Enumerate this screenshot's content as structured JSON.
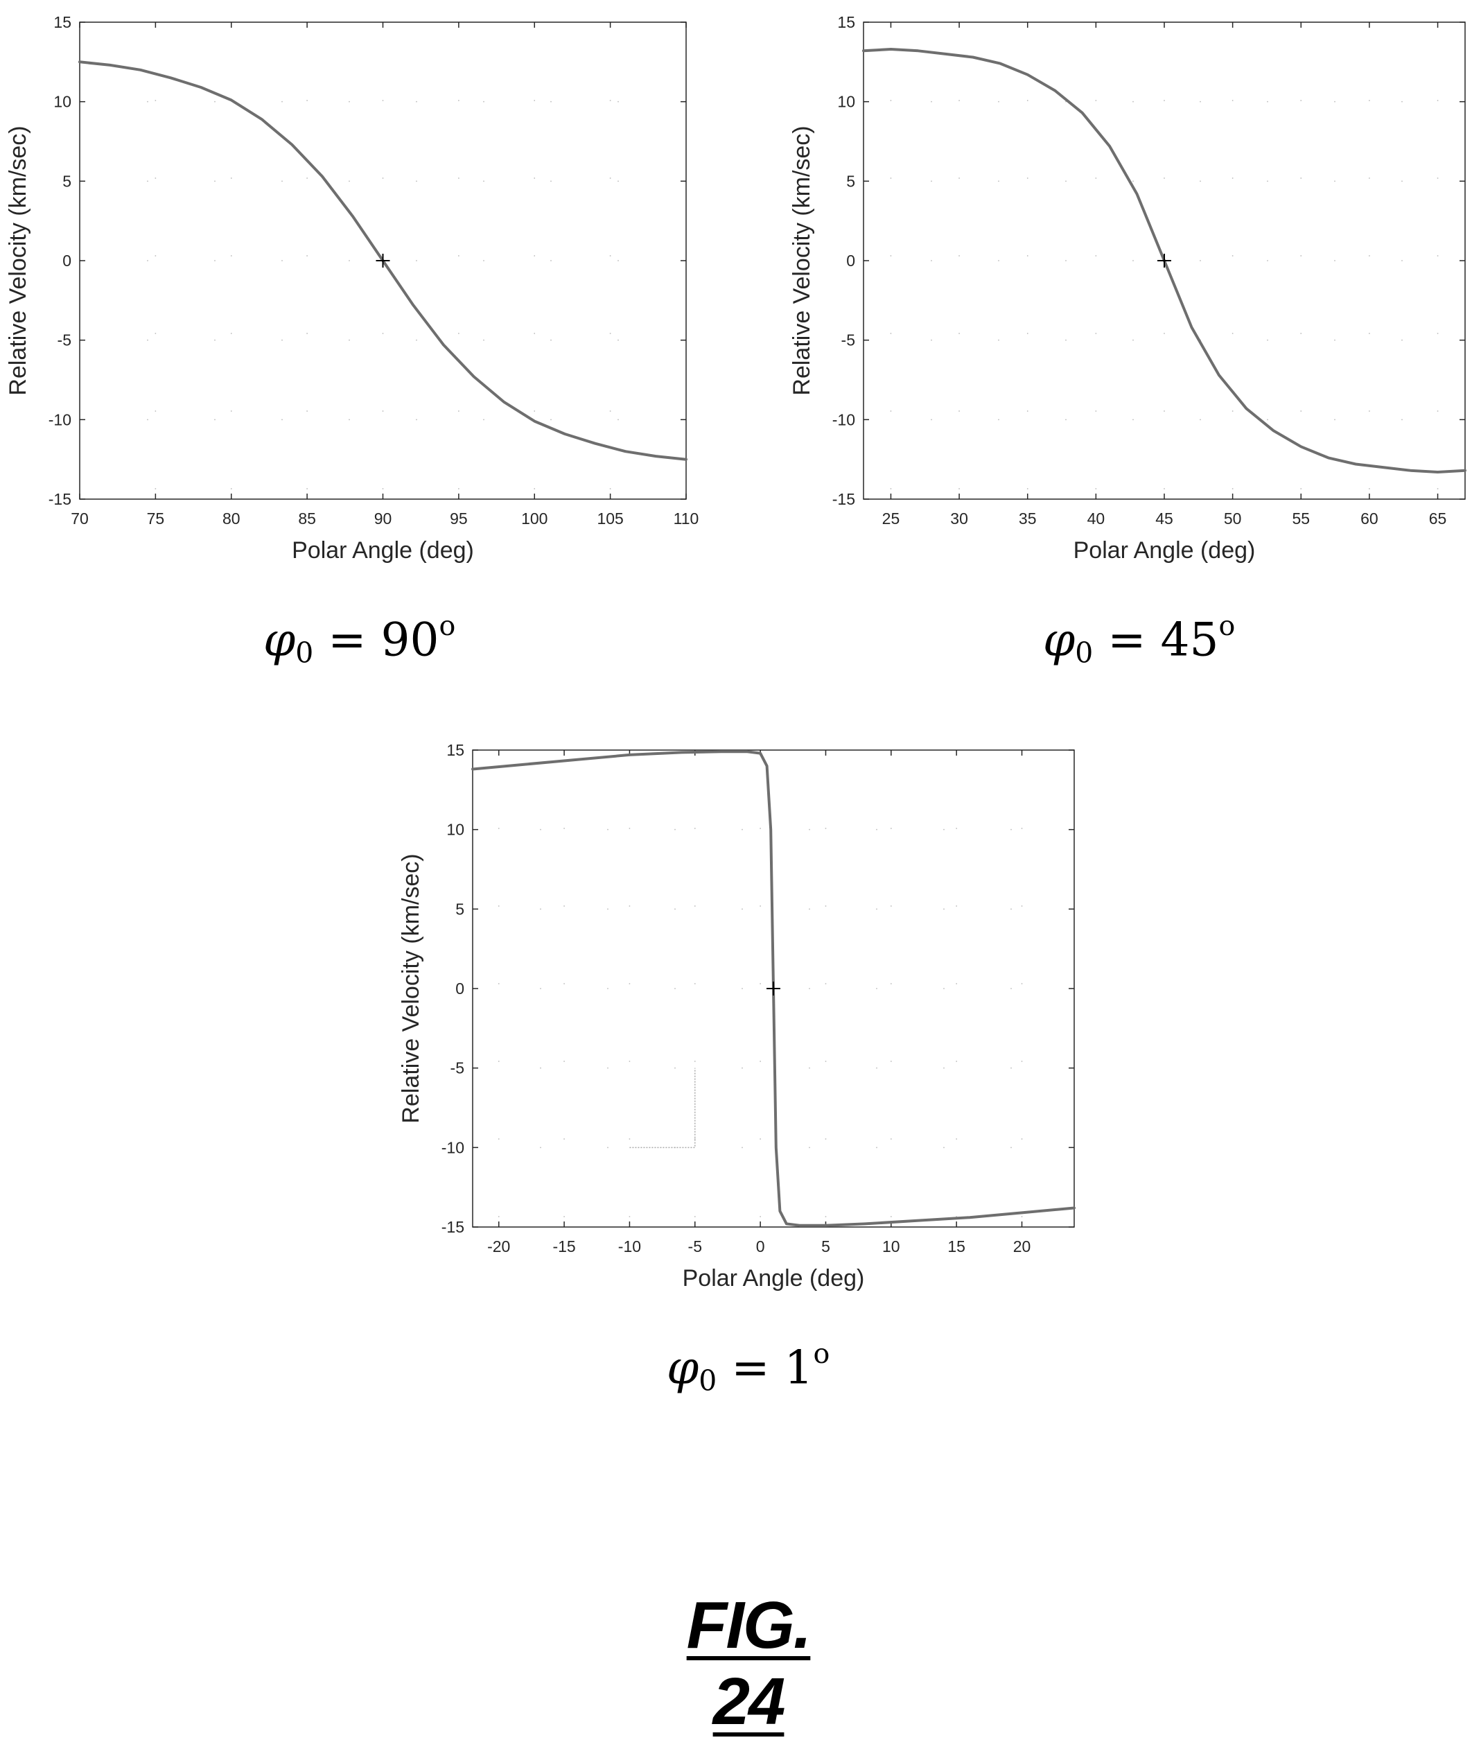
{
  "chart_data": [
    {
      "type": "line",
      "xlabel": "Polar Angle (deg)",
      "ylabel": "Relative Velocity (km/sec)",
      "xlim": [
        70,
        110
      ],
      "ylim": [
        -15,
        15
      ],
      "xticks": [
        "70",
        "75",
        "80",
        "85",
        "90",
        "95",
        "100",
        "105",
        "110"
      ],
      "yticks": [
        "15",
        "10",
        "5",
        "0",
        "-5",
        "-10",
        "-15"
      ],
      "grid": "dotted",
      "series": [
        {
          "color": "#6e6e6e",
          "x": [
            70,
            72,
            74,
            76,
            78,
            80,
            82,
            84,
            86,
            88,
            90,
            92,
            94,
            96,
            98,
            100,
            102,
            104,
            106,
            108,
            110
          ],
          "y": [
            12.5,
            12.3,
            12.0,
            11.5,
            10.9,
            10.1,
            8.9,
            7.3,
            5.3,
            2.8,
            0,
            -2.8,
            -5.3,
            -7.3,
            -8.9,
            -10.1,
            -10.9,
            -11.5,
            -12.0,
            -12.3,
            -12.5
          ]
        }
      ],
      "marker": {
        "x": 90,
        "y": 0
      },
      "caption": {
        "symbol": "φ",
        "sub": "0",
        "eq": "=",
        "value": "90",
        "sup": "o"
      }
    },
    {
      "type": "line",
      "xlabel": "Polar Angle (deg)",
      "ylabel": "Relative Velocity (km/sec)",
      "xlim": [
        23,
        67
      ],
      "ylim": [
        -15,
        15
      ],
      "xticks": [
        "25",
        "30",
        "35",
        "40",
        "45",
        "50",
        "55",
        "60",
        "65"
      ],
      "yticks": [
        "15",
        "10",
        "5",
        "0",
        "-5",
        "-10",
        "-15"
      ],
      "grid": "dotted",
      "series": [
        {
          "color": "#6e6e6e",
          "x": [
            23,
            25,
            27,
            29,
            31,
            33,
            35,
            37,
            39,
            41,
            43,
            45,
            47,
            49,
            51,
            53,
            55,
            57,
            59,
            61,
            63,
            65,
            67
          ],
          "y": [
            13.2,
            13.3,
            13.2,
            13.0,
            12.8,
            12.4,
            11.7,
            10.7,
            9.3,
            7.2,
            4.2,
            0,
            -4.2,
            -7.2,
            -9.3,
            -10.7,
            -11.7,
            -12.4,
            -12.8,
            -13.0,
            -13.2,
            -13.3,
            -13.2
          ]
        }
      ],
      "marker": {
        "x": 45,
        "y": 0
      },
      "caption": {
        "symbol": "φ",
        "sub": "0",
        "eq": "=",
        "value": "45",
        "sup": "o"
      }
    },
    {
      "type": "line",
      "xlabel": "Polar Angle (deg)",
      "ylabel": "Relative Velocity (km/sec)",
      "xlim": [
        -22,
        24
      ],
      "ylim": [
        -15,
        15
      ],
      "xticks": [
        "-20",
        "-15",
        "-10",
        "-5",
        "0",
        "5",
        "10",
        "15",
        "20"
      ],
      "yticks": [
        "15",
        "10",
        "5",
        "0",
        "-5",
        "-10",
        "-15"
      ],
      "grid": "dotted",
      "series": [
        {
          "color": "#6e6e6e",
          "x": [
            -22,
            -18,
            -14,
            -10,
            -6,
            -3,
            -1,
            0,
            0.5,
            0.8,
            1,
            1.2,
            1.5,
            2,
            3,
            5,
            8,
            12,
            16,
            20,
            24
          ],
          "y": [
            13.8,
            14.1,
            14.4,
            14.7,
            14.85,
            14.9,
            14.9,
            14.8,
            14.0,
            10.0,
            0,
            -10.0,
            -14.0,
            -14.8,
            -14.9,
            -14.9,
            -14.8,
            -14.6,
            -14.4,
            -14.1,
            -13.8
          ]
        }
      ],
      "marker": {
        "x": 1,
        "y": 0
      },
      "inset_box": {
        "x": [
          -10,
          -5
        ],
        "y": [
          -10,
          -5
        ]
      },
      "caption": {
        "symbol": "φ",
        "sub": "0",
        "eq": "=",
        "value": "1",
        "sup": "o"
      }
    }
  ],
  "figure_label": "FIG. 24"
}
